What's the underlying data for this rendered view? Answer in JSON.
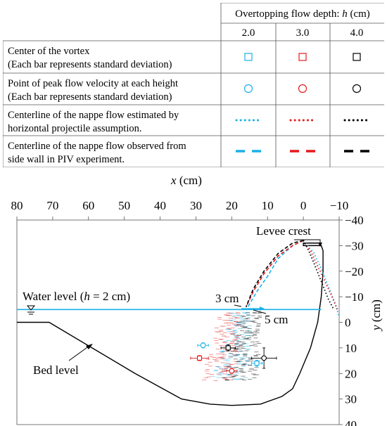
{
  "legend_table": {
    "group_header": "Overtopping flow depth: ",
    "group_header_var": "h",
    "group_header_unit": " (cm)",
    "columns": [
      "2.0",
      "3.0",
      "4.0"
    ],
    "column_colors": [
      "#1ab0e8",
      "#e41a1c",
      "#000000"
    ],
    "rows": [
      {
        "line1": "Center of the vortex",
        "line2": "(Each bar represents standard deviation)",
        "marker": "square"
      },
      {
        "line1": "Point of peak flow velocity at each height",
        "line2": "(Each bar represents standard deviation)",
        "marker": "circle"
      },
      {
        "line1": "Centerline of the nappe flow estimated by",
        "line2": "horizontal projectile assumption.",
        "marker": "dotted"
      },
      {
        "line1": "Centerline of the nappe flow observed from",
        "line2": "side wall in PIV experiment.",
        "marker": "dashed"
      }
    ]
  },
  "chart_data": {
    "type": "scatter",
    "xlabel": "x",
    "xunit": " (cm)",
    "ylabel": "y",
    "yunit": " (cm)",
    "x_reversed": true,
    "y_reversed": true,
    "xlim": [
      80,
      -10
    ],
    "ylim": [
      -40,
      40
    ],
    "xticks": [
      80,
      70,
      60,
      50,
      40,
      30,
      20,
      10,
      0,
      -10
    ],
    "xtick_labels": [
      "80",
      "70",
      "60",
      "50",
      "40",
      "30",
      "20",
      "10",
      "0",
      "−10"
    ],
    "yticks": [
      -40,
      -30,
      -20,
      -10,
      0,
      10,
      20,
      30,
      40
    ],
    "ytick_labels": [
      "−40",
      "−30",
      "−20",
      "−10",
      "0",
      "10",
      "20",
      "30",
      "40"
    ],
    "annotations": {
      "water_level_prefix": "Water level (",
      "water_level_var": "h",
      "water_level_suffix": " = 2 cm)",
      "bed_level": "Bed level",
      "levee_crest": "Levee crest",
      "three_cm": "3 cm",
      "five_cm": "5 cm"
    },
    "water_level_y": -5,
    "bed_profile": [
      [
        80,
        0
      ],
      [
        71,
        0
      ],
      [
        59,
        10
      ],
      [
        47,
        20
      ],
      [
        34,
        30
      ],
      [
        26,
        32
      ],
      [
        20,
        32.5
      ],
      [
        12,
        32
      ],
      [
        6,
        29
      ],
      [
        3,
        26
      ],
      [
        1,
        20
      ],
      [
        -2,
        10
      ],
      [
        -4,
        0
      ],
      [
        -5,
        -10
      ],
      [
        -5.5,
        -20
      ],
      [
        -5.5,
        -28
      ],
      [
        -5,
        -30
      ],
      [
        0,
        -30
      ],
      [
        0,
        -31
      ],
      [
        -5,
        -31
      ]
    ],
    "series": [
      {
        "name": "2.0",
        "color": "#1ab0e8",
        "nappe_estimated": [
          [
            0,
            -32
          ],
          [
            -3,
            -27
          ],
          [
            -5,
            -21
          ],
          [
            -7,
            -14
          ],
          [
            -9,
            -7
          ],
          [
            -10,
            -2
          ]
        ],
        "nappe_observed": [
          [
            0,
            -32
          ],
          [
            3,
            -30
          ],
          [
            7,
            -25
          ],
          [
            10,
            -18
          ],
          [
            13,
            -12
          ],
          [
            15.5,
            -6
          ]
        ],
        "vortex": {
          "x": 13,
          "y": 16,
          "xerr": 1.5,
          "yerr": 1.2
        },
        "peak_velocity": {
          "x": 28,
          "y": 9,
          "xerr": 1.5,
          "yerr": 1
        }
      },
      {
        "name": "3.0",
        "color": "#e41a1c",
        "nappe_estimated": [
          [
            0,
            -32
          ],
          [
            -2,
            -28
          ],
          [
            -4,
            -22
          ],
          [
            -6,
            -16
          ],
          [
            -8,
            -10
          ],
          [
            -9.5,
            -5
          ]
        ],
        "nappe_observed": [
          [
            0,
            -32
          ],
          [
            3,
            -30
          ],
          [
            7,
            -26
          ],
          [
            11,
            -19
          ],
          [
            14,
            -12
          ],
          [
            16,
            -6
          ]
        ],
        "vortex": {
          "x": 29,
          "y": 14,
          "xerr": 2.5,
          "yerr": 1
        },
        "peak_velocity": {
          "x": 20,
          "y": 19,
          "xerr": 1.5,
          "yerr": 1
        }
      },
      {
        "name": "4.0",
        "color": "#000000",
        "nappe_estimated": [
          [
            0,
            -32
          ],
          [
            -1.5,
            -28
          ],
          [
            -3,
            -23
          ],
          [
            -5,
            -16
          ],
          [
            -7,
            -9
          ],
          [
            -8.5,
            -5
          ]
        ],
        "nappe_observed": [
          [
            0,
            -32
          ],
          [
            3,
            -31
          ],
          [
            7,
            -27
          ],
          [
            11,
            -20
          ],
          [
            14,
            -13
          ],
          [
            16,
            -6
          ]
        ],
        "vortex": {
          "x": 21,
          "y": 10,
          "xerr": 2,
          "yerr": 1.2
        },
        "peak_velocity": {
          "x": 11,
          "y": 14,
          "xerr": 3.5,
          "yerr": 4
        }
      }
    ]
  }
}
